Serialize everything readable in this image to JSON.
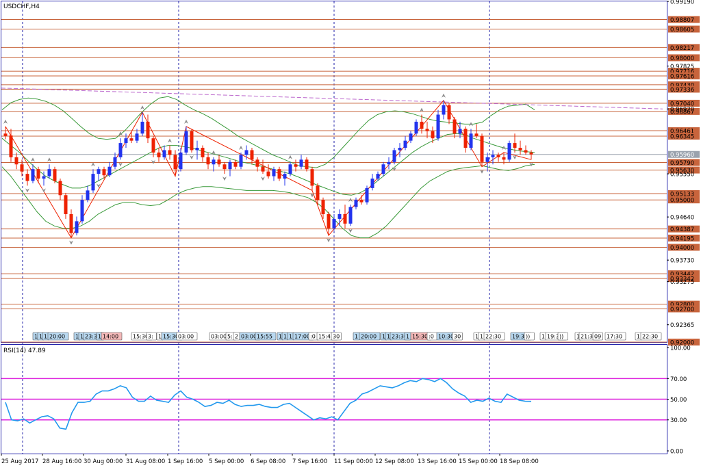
{
  "symbol_title": "USDCHF,H4",
  "rsi_title": "RSI(14) 47.89",
  "colors": {
    "background": "#ffffff",
    "frame": "#2222aa",
    "level_line": "#c8643c",
    "level_box": "#c8643c",
    "current_price_box": "#9aa2ad",
    "bull_candle": "#2233ee",
    "bear_candle": "#ee2200",
    "bollinger": "#3a9a3a",
    "rsi_line": "#2299ee",
    "rsi_level": "#dd22dd",
    "trendline": "#bb66cc",
    "zigzag": "#ee2200",
    "period_separator": "#2222aa"
  },
  "chart_data": [
    {
      "type": "candlestick",
      "title": "USDCHF,H4",
      "ylim": [
        0.92,
        0.9919
      ],
      "y_ticks": [
        "0.99190",
        "0.97825",
        "0.96920",
        "0.95550",
        "0.94640",
        "0.93730",
        "0.93275",
        "0.92365"
      ],
      "x_ticks": [
        "25 Aug 2017",
        "28 Aug 16:00",
        "30 Aug 00:00",
        "31 Aug 08:00",
        "1 Sep 16:00",
        "5 Sep 00:00",
        "6 Sep 08:00",
        "7 Sep 16:00",
        "11 Sep 00:00",
        "12 Sep 08:00",
        "13 Sep 16:00",
        "15 Sep 00:00",
        "18 Sep 08:00"
      ],
      "horizontal_levels": [
        "0.98807",
        "0.98605",
        "0.98217",
        "0.98000",
        "0.97716",
        "0.97616",
        "0.97430",
        "0.97336",
        "0.97040",
        "0.96867",
        "0.96461",
        "0.96345",
        "0.95790",
        "0.95630",
        "0.95133",
        "0.95000",
        "0.94387",
        "0.94195",
        "0.94000",
        "0.93442",
        "0.93342",
        "0.92800",
        "0.92700",
        "0.92000"
      ],
      "current_price": "0.95960",
      "candles": [
        [
          0.964,
          0.9655,
          0.9628,
          0.9635
        ],
        [
          0.9636,
          0.965,
          0.958,
          0.959
        ],
        [
          0.959,
          0.96,
          0.9565,
          0.9575
        ],
        [
          0.9575,
          0.9585,
          0.955,
          0.956
        ],
        [
          0.9555,
          0.9565,
          0.953,
          0.954
        ],
        [
          0.954,
          0.9575,
          0.9535,
          0.9565
        ],
        [
          0.9565,
          0.957,
          0.9535,
          0.9545
        ],
        [
          0.9545,
          0.956,
          0.953,
          0.955
        ],
        [
          0.955,
          0.9575,
          0.9545,
          0.9565
        ],
        [
          0.9565,
          0.957,
          0.9535,
          0.954
        ],
        [
          0.954,
          0.9545,
          0.95,
          0.951
        ],
        [
          0.951,
          0.9515,
          0.946,
          0.947
        ],
        [
          0.947,
          0.948,
          0.942,
          0.943
        ],
        [
          0.943,
          0.9465,
          0.9425,
          0.9455
        ],
        [
          0.9455,
          0.951,
          0.945,
          0.95
        ],
        [
          0.95,
          0.953,
          0.9495,
          0.952
        ],
        [
          0.952,
          0.9565,
          0.9515,
          0.9555
        ],
        [
          0.9555,
          0.957,
          0.954,
          0.9565
        ],
        [
          0.9565,
          0.957,
          0.9545,
          0.9552
        ],
        [
          0.9552,
          0.958,
          0.9548,
          0.957
        ],
        [
          0.957,
          0.96,
          0.9565,
          0.959
        ],
        [
          0.959,
          0.963,
          0.9585,
          0.962
        ],
        [
          0.962,
          0.964,
          0.961,
          0.963
        ],
        [
          0.963,
          0.9645,
          0.962,
          0.9625
        ],
        [
          0.9625,
          0.965,
          0.962,
          0.964
        ],
        [
          0.964,
          0.9685,
          0.9635,
          0.9665
        ],
        [
          0.9665,
          0.968,
          0.962,
          0.963
        ],
        [
          0.963,
          0.9635,
          0.959,
          0.96
        ],
        [
          0.96,
          0.961,
          0.958,
          0.959
        ],
        [
          0.959,
          0.9615,
          0.9585,
          0.9605
        ],
        [
          0.9605,
          0.9615,
          0.9585,
          0.9595
        ],
        [
          0.9595,
          0.9605,
          0.955,
          0.9565
        ],
        [
          0.9565,
          0.961,
          0.956,
          0.96
        ],
        [
          0.96,
          0.9655,
          0.9595,
          0.9645
        ],
        [
          0.9645,
          0.965,
          0.96,
          0.9605
        ],
        [
          0.9605,
          0.9625,
          0.9585,
          0.961
        ],
        [
          0.961,
          0.9615,
          0.958,
          0.959
        ],
        [
          0.959,
          0.96,
          0.9565,
          0.9575
        ],
        [
          0.9575,
          0.959,
          0.956,
          0.9585
        ],
        [
          0.9585,
          0.9595,
          0.957,
          0.9575
        ],
        [
          0.9575,
          0.958,
          0.9555,
          0.9565
        ],
        [
          0.9565,
          0.9585,
          0.955,
          0.958
        ],
        [
          0.958,
          0.9585,
          0.9565,
          0.957
        ],
        [
          0.957,
          0.96,
          0.9565,
          0.9595
        ],
        [
          0.9595,
          0.9615,
          0.9585,
          0.9605
        ],
        [
          0.9605,
          0.961,
          0.9575,
          0.9585
        ],
        [
          0.9585,
          0.959,
          0.956,
          0.957
        ],
        [
          0.957,
          0.9585,
          0.9555,
          0.956
        ],
        [
          0.956,
          0.9575,
          0.9545,
          0.955
        ],
        [
          0.955,
          0.957,
          0.954,
          0.9565
        ],
        [
          0.9565,
          0.957,
          0.954,
          0.9545
        ],
        [
          0.9545,
          0.956,
          0.953,
          0.9555
        ],
        [
          0.9555,
          0.958,
          0.955,
          0.9575
        ],
        [
          0.9575,
          0.9585,
          0.956,
          0.957
        ],
        [
          0.957,
          0.9595,
          0.9565,
          0.9585
        ],
        [
          0.9585,
          0.959,
          0.956,
          0.9565
        ],
        [
          0.9565,
          0.957,
          0.952,
          0.953
        ],
        [
          0.953,
          0.9535,
          0.949,
          0.95
        ],
        [
          0.95,
          0.9505,
          0.946,
          0.947
        ],
        [
          0.947,
          0.9475,
          0.9425,
          0.944
        ],
        [
          0.944,
          0.947,
          0.9435,
          0.946
        ],
        [
          0.946,
          0.948,
          0.9445,
          0.947
        ],
        [
          0.947,
          0.949,
          0.944,
          0.945
        ],
        [
          0.945,
          0.949,
          0.9445,
          0.9485
        ],
        [
          0.9485,
          0.9505,
          0.948,
          0.95
        ],
        [
          0.95,
          0.951,
          0.949,
          0.9495
        ],
        [
          0.9495,
          0.953,
          0.949,
          0.9525
        ],
        [
          0.9525,
          0.9555,
          0.952,
          0.9545
        ],
        [
          0.9545,
          0.956,
          0.954,
          0.9555
        ],
        [
          0.9555,
          0.958,
          0.955,
          0.9575
        ],
        [
          0.9575,
          0.959,
          0.9565,
          0.958
        ],
        [
          0.958,
          0.961,
          0.9575,
          0.9605
        ],
        [
          0.9605,
          0.962,
          0.959,
          0.961
        ],
        [
          0.961,
          0.9635,
          0.9605,
          0.9625
        ],
        [
          0.9625,
          0.9645,
          0.962,
          0.964
        ],
        [
          0.964,
          0.967,
          0.9635,
          0.9665
        ],
        [
          0.9665,
          0.968,
          0.964,
          0.965
        ],
        [
          0.965,
          0.9665,
          0.963,
          0.9645
        ],
        [
          0.9645,
          0.9655,
          0.962,
          0.963
        ],
        [
          0.963,
          0.969,
          0.9625,
          0.968
        ],
        [
          0.968,
          0.971,
          0.967,
          0.97
        ],
        [
          0.97,
          0.9705,
          0.966,
          0.967
        ],
        [
          0.967,
          0.9675,
          0.963,
          0.964
        ],
        [
          0.964,
          0.9665,
          0.963,
          0.965
        ],
        [
          0.965,
          0.9655,
          0.96,
          0.961
        ],
        [
          0.961,
          0.965,
          0.9605,
          0.964
        ],
        [
          0.964,
          0.966,
          0.963,
          0.9635
        ],
        [
          0.9635,
          0.964,
          0.957,
          0.958
        ],
        [
          0.958,
          0.96,
          0.956,
          0.959
        ],
        [
          0.959,
          0.9605,
          0.9575,
          0.9595
        ],
        [
          0.9595,
          0.96,
          0.958,
          0.959
        ],
        [
          0.959,
          0.96,
          0.9575,
          0.9585
        ],
        [
          0.9585,
          0.9625,
          0.958,
          0.962
        ],
        [
          0.962,
          0.964,
          0.96,
          0.961
        ],
        [
          0.961,
          0.9625,
          0.9595,
          0.9605
        ],
        [
          0.9605,
          0.9615,
          0.9595,
          0.96
        ],
        [
          0.96,
          0.9605,
          0.9585,
          0.9596
        ]
      ],
      "bollinger_upper": [
        0.969,
        0.9705,
        0.9712,
        0.9715,
        0.9713,
        0.9708,
        0.97,
        0.9688,
        0.9672,
        0.9655,
        0.964,
        0.963,
        0.9628,
        0.963,
        0.9645,
        0.9665,
        0.9685,
        0.9702,
        0.9715,
        0.9718,
        0.9712,
        0.97,
        0.969,
        0.9682,
        0.9672,
        0.966,
        0.9648,
        0.9635,
        0.9625,
        0.9615,
        0.9605,
        0.9595,
        0.9588,
        0.958,
        0.9572,
        0.957,
        0.9568,
        0.9575,
        0.959,
        0.961,
        0.963,
        0.965,
        0.9668,
        0.968,
        0.9686,
        0.9688,
        0.9686,
        0.9682,
        0.9676,
        0.967,
        0.9666,
        0.9664,
        0.9662,
        0.966,
        0.966,
        0.9664,
        0.9678,
        0.969,
        0.9698,
        0.97,
        0.9702,
        0.969
      ],
      "bollinger_mid": [
        0.963,
        0.9615,
        0.96,
        0.9582,
        0.9565,
        0.955,
        0.954,
        0.9532,
        0.9525,
        0.9525,
        0.953,
        0.954,
        0.955,
        0.956,
        0.957,
        0.958,
        0.959,
        0.96,
        0.961,
        0.9615,
        0.9615,
        0.9612,
        0.9608,
        0.9603,
        0.9598,
        0.9593,
        0.9588,
        0.9582,
        0.9578,
        0.9574,
        0.957,
        0.9565,
        0.956,
        0.9555,
        0.9548,
        0.954,
        0.9532,
        0.9525,
        0.9518,
        0.9512,
        0.951,
        0.9515,
        0.9525,
        0.954,
        0.9555,
        0.957,
        0.9585,
        0.96,
        0.9612,
        0.9622,
        0.963,
        0.9638,
        0.964,
        0.9638,
        0.963,
        0.9624,
        0.9618,
        0.9612,
        0.9608,
        0.9604,
        0.9602,
        0.96
      ],
      "bollinger_lower": [
        0.957,
        0.955,
        0.9525,
        0.95,
        0.9475,
        0.9455,
        0.9445,
        0.944,
        0.944,
        0.9445,
        0.9455,
        0.947,
        0.948,
        0.949,
        0.9495,
        0.9495,
        0.949,
        0.9488,
        0.949,
        0.95,
        0.9512,
        0.952,
        0.9525,
        0.9528,
        0.9528,
        0.9526,
        0.9524,
        0.9522,
        0.952,
        0.952,
        0.952,
        0.952,
        0.9518,
        0.9515,
        0.951,
        0.9505,
        0.9495,
        0.948,
        0.946,
        0.944,
        0.9425,
        0.942,
        0.942,
        0.943,
        0.9445,
        0.9465,
        0.9485,
        0.9505,
        0.9525,
        0.954,
        0.955,
        0.956,
        0.9565,
        0.9568,
        0.957,
        0.9572,
        0.9568,
        0.9564,
        0.9562,
        0.9566,
        0.9572,
        0.9575
      ]
    },
    {
      "type": "line",
      "title": "RSI(14) 47.89",
      "ylim": [
        0,
        100
      ],
      "y_ticks": [
        "100.00",
        "70.00",
        "50.00",
        "30.00",
        "0.00"
      ],
      "levels": [
        70,
        50,
        30
      ],
      "series": [
        {
          "values": [
            47,
            30,
            29,
            31,
            27,
            30,
            33,
            34,
            31,
            22,
            21,
            37,
            47,
            47,
            48,
            55,
            58,
            58,
            60,
            63,
            61,
            52,
            48,
            48,
            53,
            49,
            48,
            47,
            54,
            58,
            52,
            50,
            47,
            43,
            44,
            47,
            46,
            49,
            45,
            43,
            44,
            44,
            45,
            43,
            42,
            42,
            45,
            46,
            42,
            38,
            34,
            30,
            32,
            31,
            33,
            30,
            38,
            46,
            49,
            55,
            57,
            60,
            63,
            62,
            61,
            63,
            66,
            68,
            67,
            70,
            69,
            67,
            70,
            66,
            60,
            56,
            53,
            47,
            49,
            48,
            51,
            48,
            47,
            55,
            52,
            49,
            48,
            47.89
          ]
        }
      ]
    }
  ]
}
